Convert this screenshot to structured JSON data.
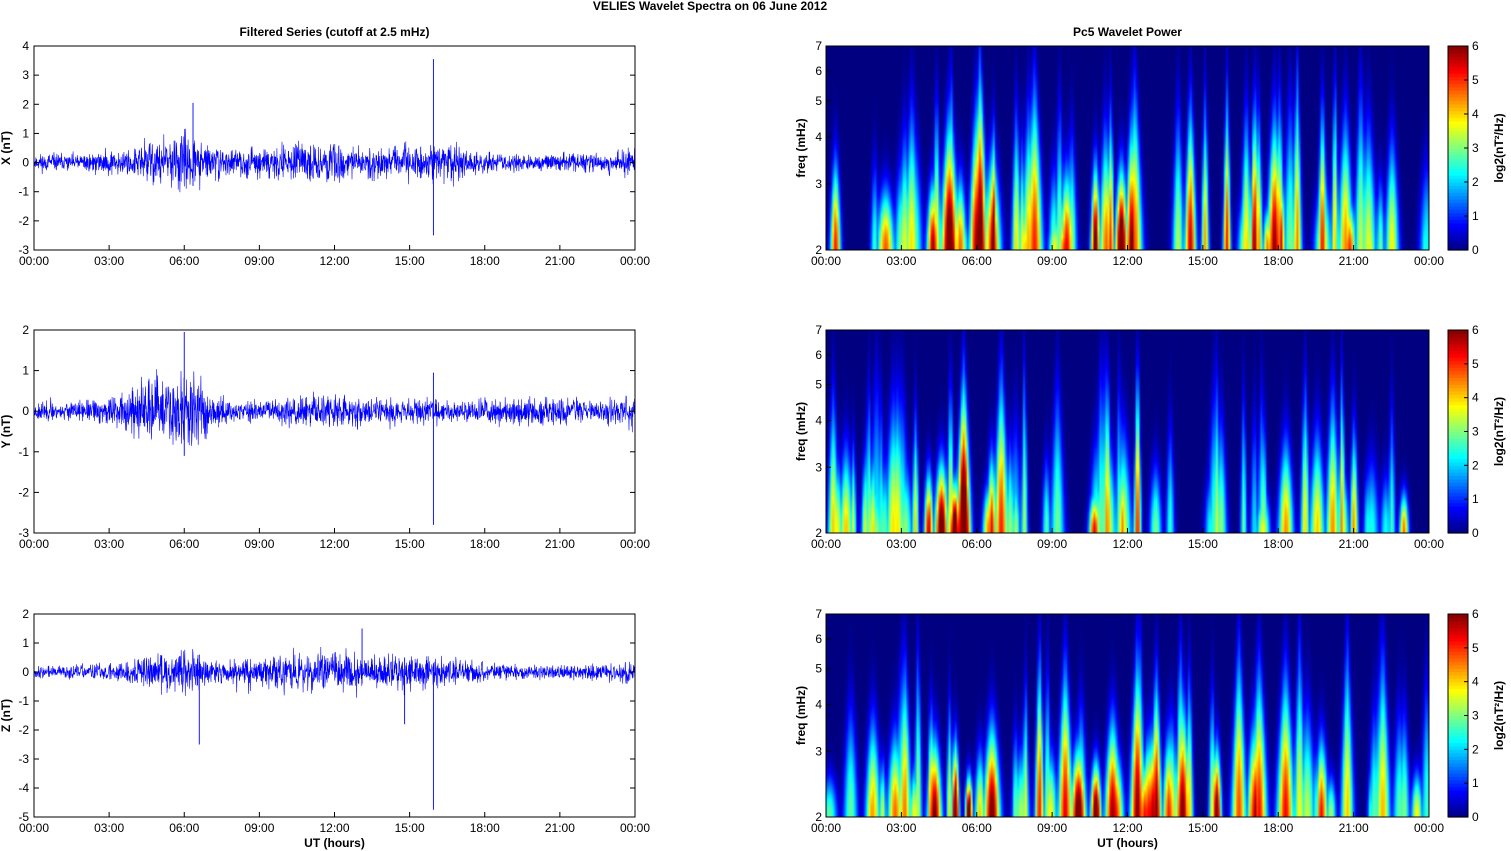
{
  "figure": {
    "title": "VELIES Wavelet Spectra on 06 June      2012",
    "time_ticks": [
      "00:00",
      "03:00",
      "06:00",
      "09:00",
      "12:00",
      "15:00",
      "18:00",
      "21:00",
      "00:00"
    ],
    "xlabel": "UT (hours)",
    "colors": {
      "trace": "#0000ff",
      "axes": "#000000",
      "background": "#ffffff"
    }
  },
  "chart_data": [
    {
      "type": "line",
      "panel": "series-x",
      "title": "Filtered Series (cutoff at 2.5 mHz)",
      "xlabel": "",
      "ylabel": "X (nT)",
      "xlim": [
        0,
        24
      ],
      "ylim": [
        -3,
        4
      ],
      "yticks": [
        -3,
        -2,
        -1,
        0,
        1,
        2,
        3,
        4
      ],
      "x_unit": "UT hours",
      "envelope": {
        "x": [
          0,
          1,
          2,
          3,
          4,
          4.5,
          5,
          5.5,
          6,
          6.5,
          7,
          8,
          9,
          10,
          11,
          12,
          13,
          14,
          15,
          15.9,
          16.5,
          17,
          18,
          19,
          20,
          21,
          22,
          23,
          24
        ],
        "amplitude": [
          0.45,
          0.4,
          0.45,
          0.55,
          0.7,
          1.0,
          1.2,
          1.1,
          1.5,
          1.2,
          0.8,
          0.6,
          0.65,
          0.8,
          0.9,
          0.95,
          0.7,
          0.75,
          0.85,
          0.8,
          1.0,
          0.9,
          0.5,
          0.4,
          0.4,
          0.45,
          0.45,
          0.5,
          0.6
        ]
      },
      "spikes": [
        {
          "x": 15.95,
          "ymin": -2.5,
          "ymax": 3.55
        },
        {
          "x": 6.35,
          "ymin": -0.8,
          "ymax": 2.05
        }
      ],
      "seed": 11
    },
    {
      "type": "line",
      "panel": "series-y",
      "title": "",
      "xlabel": "",
      "ylabel": "Y (nT)",
      "xlim": [
        0,
        24
      ],
      "ylim": [
        -3,
        2
      ],
      "yticks": [
        -3,
        -2,
        -1,
        0,
        1,
        2
      ],
      "x_unit": "UT hours",
      "envelope": {
        "x": [
          0,
          1,
          2,
          3,
          4,
          4.5,
          5,
          5.5,
          6,
          6.5,
          7,
          8,
          9,
          10,
          11,
          12,
          13,
          14,
          15,
          15.9,
          16.5,
          17,
          18,
          19,
          20,
          21,
          22,
          23,
          24
        ],
        "amplitude": [
          0.35,
          0.3,
          0.35,
          0.5,
          0.8,
          1.1,
          1.25,
          1.2,
          1.5,
          1.3,
          0.7,
          0.35,
          0.35,
          0.5,
          0.65,
          0.6,
          0.55,
          0.45,
          0.4,
          0.45,
          0.35,
          0.35,
          0.45,
          0.5,
          0.45,
          0.45,
          0.4,
          0.45,
          0.6
        ]
      },
      "spikes": [
        {
          "x": 15.95,
          "ymin": -2.8,
          "ymax": 0.95
        },
        {
          "x": 6.0,
          "ymin": -1.1,
          "ymax": 1.95
        }
      ],
      "seed": 23
    },
    {
      "type": "line",
      "panel": "series-z",
      "title": "",
      "xlabel": "UT (hours)",
      "ylabel": "Z (nT)",
      "xlim": [
        0,
        24
      ],
      "ylim": [
        -5,
        2
      ],
      "yticks": [
        -5,
        -4,
        -3,
        -2,
        -1,
        0,
        1,
        2
      ],
      "x_unit": "UT hours",
      "envelope": {
        "x": [
          0,
          1,
          2,
          3,
          4,
          4.5,
          5,
          5.5,
          6,
          6.5,
          7,
          8,
          9,
          10,
          11,
          12,
          13,
          14,
          15,
          15.9,
          16.5,
          17,
          18,
          19,
          20,
          21,
          22,
          23,
          24
        ],
        "amplitude": [
          0.3,
          0.3,
          0.35,
          0.45,
          0.65,
          0.8,
          0.95,
          0.9,
          1.1,
          0.95,
          0.6,
          0.6,
          0.75,
          0.9,
          0.95,
          1.05,
          0.9,
          0.8,
          0.85,
          0.8,
          0.9,
          0.7,
          0.45,
          0.35,
          0.35,
          0.35,
          0.35,
          0.4,
          0.55
        ]
      },
      "spikes": [
        {
          "x": 15.95,
          "ymin": -4.75,
          "ymax": 0.3
        },
        {
          "x": 6.6,
          "ymin": -2.5,
          "ymax": 0.6
        },
        {
          "x": 14.8,
          "ymin": -1.8,
          "ymax": 0.5
        },
        {
          "x": 13.1,
          "ymin": -0.4,
          "ymax": 1.5
        }
      ],
      "seed": 37
    },
    {
      "type": "heatmap",
      "panel": "power-x",
      "title": "Pc5 Wavelet Power",
      "xlabel": "",
      "ylabel": "freq (mHz)",
      "xlim": [
        0,
        24
      ],
      "ylim": [
        2,
        7
      ],
      "yscale": "log",
      "yticks": [
        2,
        3,
        4,
        5,
        6,
        7
      ],
      "colorbar": {
        "label": "log2(nT²/Hz)",
        "min": 0,
        "max": 6,
        "ticks": [
          0,
          1,
          2,
          3,
          4,
          5,
          6
        ],
        "colormap": "jet"
      },
      "activity": {
        "x": [
          0,
          1,
          2,
          3,
          4,
          4.5,
          5,
          5.5,
          6,
          6.5,
          7,
          8,
          9,
          10,
          11,
          12,
          13,
          14,
          15,
          16,
          16.5,
          17,
          18,
          19,
          20,
          21,
          22,
          23,
          23.7,
          24
        ],
        "level": [
          4.5,
          3.5,
          3.8,
          4,
          4.5,
          5.2,
          5.5,
          5.5,
          6,
          5.8,
          4.5,
          4,
          4.5,
          5,
          5.5,
          5.8,
          5,
          4.5,
          4.8,
          5,
          5.5,
          4.8,
          4.5,
          4,
          4.5,
          4,
          3.5,
          3.5,
          4,
          2
        ]
      },
      "seed": 101
    },
    {
      "type": "heatmap",
      "panel": "power-y",
      "title": "",
      "xlabel": "",
      "ylabel": "freq (mHz)",
      "xlim": [
        0,
        24
      ],
      "ylim": [
        2,
        7
      ],
      "yscale": "log",
      "yticks": [
        2,
        3,
        4,
        5,
        6,
        7
      ],
      "colorbar": {
        "label": "log2(nT²/Hz)",
        "min": 0,
        "max": 6,
        "ticks": [
          0,
          1,
          2,
          3,
          4,
          5,
          6
        ],
        "colormap": "jet"
      },
      "activity": {
        "x": [
          0,
          1,
          2,
          3,
          4,
          4.5,
          5,
          5.5,
          6,
          6.5,
          7,
          8,
          9,
          10,
          11,
          12,
          13,
          14,
          15,
          16,
          16.5,
          17,
          18,
          19,
          20,
          21,
          22,
          23,
          23.7,
          24
        ],
        "level": [
          4,
          3,
          3,
          3.5,
          5,
          5.8,
          6,
          6,
          6.2,
          5.8,
          4.2,
          2.5,
          2.8,
          3.8,
          4.5,
          4.2,
          3.8,
          3.2,
          3,
          3,
          2.8,
          3.2,
          3.8,
          4,
          4.5,
          3.8,
          3.5,
          3.8,
          4.2,
          2
        ]
      },
      "seed": 202
    },
    {
      "type": "heatmap",
      "panel": "power-z",
      "title": "",
      "xlabel": "UT (hours)",
      "ylabel": "freq (mHz)",
      "xlim": [
        0,
        24
      ],
      "ylim": [
        2,
        7
      ],
      "yscale": "log",
      "yticks": [
        2,
        3,
        4,
        5,
        6,
        7
      ],
      "colorbar": {
        "label": "log2(nT²/Hz)",
        "min": 0,
        "max": 6,
        "ticks": [
          0,
          1,
          2,
          3,
          4,
          5,
          6
        ],
        "colormap": "jet"
      },
      "activity": {
        "x": [
          0,
          1,
          2,
          3,
          4,
          4.5,
          5,
          5.5,
          6,
          6.5,
          7,
          8,
          9,
          10,
          11,
          12,
          13,
          14,
          15,
          16,
          16.5,
          17,
          18,
          19,
          20,
          21,
          22,
          23,
          23.7,
          24
        ],
        "level": [
          4.2,
          3.2,
          3.5,
          3.8,
          4.5,
          5,
          5.5,
          5.4,
          5.8,
          5.5,
          4.5,
          4.3,
          4.8,
          5.2,
          5.5,
          5.8,
          5.2,
          4.8,
          5,
          5,
          5.5,
          4.6,
          4.4,
          4,
          4.4,
          4,
          3.4,
          3.5,
          3.8,
          2
        ]
      },
      "seed": 303
    }
  ]
}
